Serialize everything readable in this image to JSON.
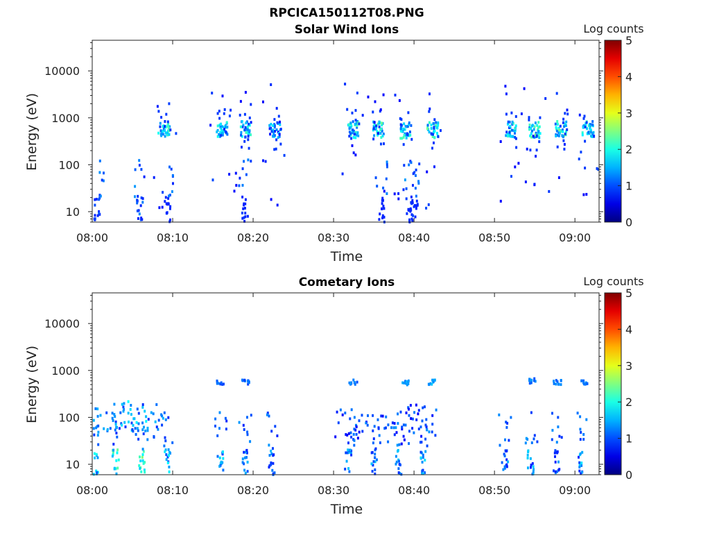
{
  "figure": {
    "title": "RPCICA150112T08.PNG"
  },
  "chart_data": [
    {
      "type": "heatmap",
      "title": "Solar Wind Ions",
      "xlabel": "Time",
      "ylabel": "Energy (eV)",
      "y_scale": "log",
      "ylim": [
        6,
        45000
      ],
      "xlim": [
        "08:00",
        "09:03"
      ],
      "x_ticks": [
        "08:00",
        "08:10",
        "08:20",
        "08:30",
        "08:40",
        "08:50",
        "09:00"
      ],
      "y_ticks": [
        "10",
        "100",
        "1000",
        "10000"
      ],
      "colorbar": {
        "label": "Log counts",
        "range": [
          0,
          5
        ],
        "ticks": [
          "0",
          "1",
          "2",
          "3",
          "4",
          "5"
        ]
      },
      "grid": false,
      "clusters": [
        {
          "t": 8.8,
          "e": 600,
          "v": 2.3
        },
        {
          "t": 16.0,
          "e": 580,
          "v": 2.1
        },
        {
          "t": 19.0,
          "e": 600,
          "v": 2.2
        },
        {
          "t": 22.6,
          "e": 600,
          "v": 1.9
        },
        {
          "t": 32.3,
          "e": 600,
          "v": 2.3
        },
        {
          "t": 35.5,
          "e": 600,
          "v": 2.4
        },
        {
          "t": 38.9,
          "e": 580,
          "v": 2.3
        },
        {
          "t": 42.2,
          "e": 580,
          "v": 2.4
        },
        {
          "t": 51.9,
          "e": 600,
          "v": 2.2
        },
        {
          "t": 54.9,
          "e": 600,
          "v": 2.4
        },
        {
          "t": 58.1,
          "e": 600,
          "v": 2.4
        },
        {
          "t": 61.5,
          "e": 600,
          "v": 2.2
        }
      ],
      "low_energy_columns": [
        {
          "t": 0.5,
          "v": 1.1
        },
        {
          "t": 5.8,
          "v": 1.3
        },
        {
          "t": 9.2,
          "v": 1.0
        },
        {
          "t": 18.9,
          "v": 1.0
        },
        {
          "t": 35.9,
          "v": 1.0
        },
        {
          "t": 39.3,
          "v": 1.0
        },
        {
          "t": 40.0,
          "v": 1.0
        }
      ]
    },
    {
      "type": "heatmap",
      "title": "Cometary Ions",
      "xlabel": "Time",
      "ylabel": "Energy (eV)",
      "y_scale": "log",
      "ylim": [
        6,
        45000
      ],
      "xlim": [
        "08:00",
        "09:03"
      ],
      "x_ticks": [
        "08:00",
        "08:10",
        "08:20",
        "08:30",
        "08:40",
        "08:50",
        "09:00"
      ],
      "y_ticks": [
        "10",
        "100",
        "1000",
        "10000"
      ],
      "colorbar": {
        "label": "Log counts",
        "range": [
          0,
          5
        ],
        "ticks": [
          "0",
          "1",
          "2",
          "3",
          "4",
          "5"
        ]
      },
      "grid": false,
      "low_energy_columns": [
        {
          "t": 0.2,
          "v": 2.0
        },
        {
          "t": 2.8,
          "v": 2.4
        },
        {
          "t": 6.0,
          "v": 2.6
        },
        {
          "t": 9.2,
          "v": 1.9
        },
        {
          "t": 15.8,
          "v": 1.8
        },
        {
          "t": 18.9,
          "v": 1.6
        },
        {
          "t": 22.2,
          "v": 1.6
        },
        {
          "t": 31.7,
          "v": 1.6
        },
        {
          "t": 34.9,
          "v": 1.7
        },
        {
          "t": 38.0,
          "v": 1.6
        },
        {
          "t": 41.0,
          "v": 1.8
        },
        {
          "t": 51.2,
          "v": 1.5
        },
        {
          "t": 54.4,
          "v": 1.7
        },
        {
          "t": 57.6,
          "v": 1.5
        },
        {
          "t": 60.7,
          "v": 1.8
        }
      ],
      "mid_energy_scatter": [
        {
          "t": 2.0,
          "e": 80,
          "v": 1.2
        },
        {
          "t": 4.5,
          "e": 120,
          "v": 1.5
        },
        {
          "t": 6.5,
          "e": 90,
          "v": 1.2
        },
        {
          "t": 32.0,
          "e": 70,
          "v": 0.9
        },
        {
          "t": 37.5,
          "e": 60,
          "v": 0.9
        },
        {
          "t": 40.5,
          "e": 90,
          "v": 0.9
        }
      ],
      "high_energy_bands": [
        {
          "t": 15.8,
          "e": 600,
          "v": 0.9
        },
        {
          "t": 19.0,
          "e": 600,
          "v": 0.9
        },
        {
          "t": 32.3,
          "e": 600,
          "v": 1.0
        },
        {
          "t": 38.9,
          "e": 580,
          "v": 1.1
        },
        {
          "t": 42.2,
          "e": 600,
          "v": 1.2
        },
        {
          "t": 54.6,
          "e": 640,
          "v": 1.0
        },
        {
          "t": 57.7,
          "e": 600,
          "v": 1.0
        },
        {
          "t": 61.0,
          "e": 580,
          "v": 1.0
        }
      ]
    }
  ]
}
